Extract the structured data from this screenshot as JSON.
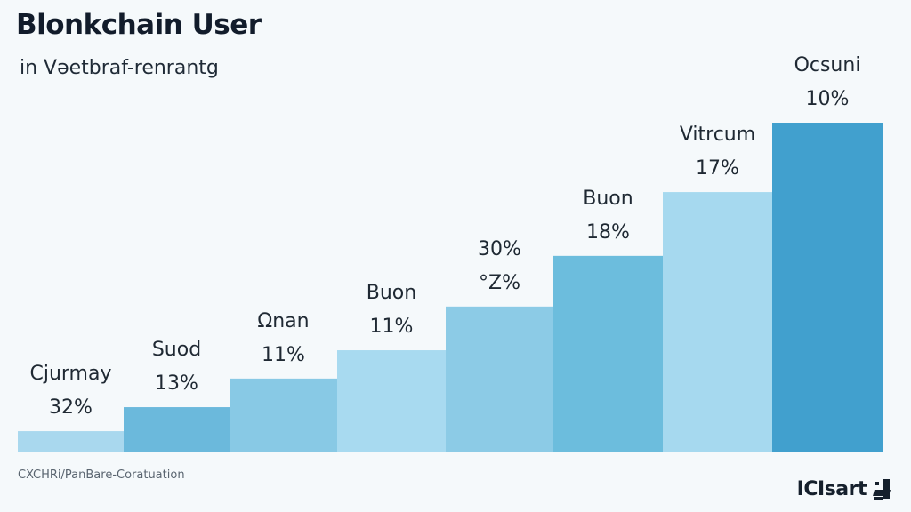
{
  "header": {
    "title": "Blonkchain User",
    "subtitle": "in Vǝetbraf-renrantg"
  },
  "footer": {
    "source": "CXCHRi/PanBare-Coratuation",
    "brand": "ICIsart"
  },
  "chart_data": {
    "type": "bar",
    "title": "Blonkchain User",
    "subtitle": "in Vǝetbraf-renrantg",
    "xlabel": "",
    "ylabel": "",
    "axes_visible": false,
    "grid": false,
    "legend": "none",
    "value_scale_note": "relative bar height, tallest bar = 100 (no axis shown)",
    "ylim": [
      0,
      100
    ],
    "categories": [
      "Cjurmay",
      "Suod",
      "Ωnan",
      "Buon",
      "",
      "Buon",
      "Vitrcum",
      "Ocsuni"
    ],
    "data_labels": [
      [
        "Cjurmay",
        "32%"
      ],
      [
        "Suod",
        "13%"
      ],
      [
        "Ωnan",
        "11%"
      ],
      [
        "Buon",
        "11%"
      ],
      [
        "30%",
        "°Z%"
      ],
      [
        "Buon",
        "18%"
      ],
      [
        "Vitrcum",
        "17%"
      ],
      [
        "Ocsuni",
        "10%"
      ]
    ],
    "values": [
      6.2,
      13.5,
      22.2,
      30.8,
      44.1,
      59.5,
      78.9,
      100
    ],
    "colors": [
      "#a9d8ee",
      "#6bb9dc",
      "#88c9e5",
      "#a8daf0",
      "#8ccbe6",
      "#6cbddd",
      "#a6d9ef",
      "#41a0ce"
    ]
  }
}
